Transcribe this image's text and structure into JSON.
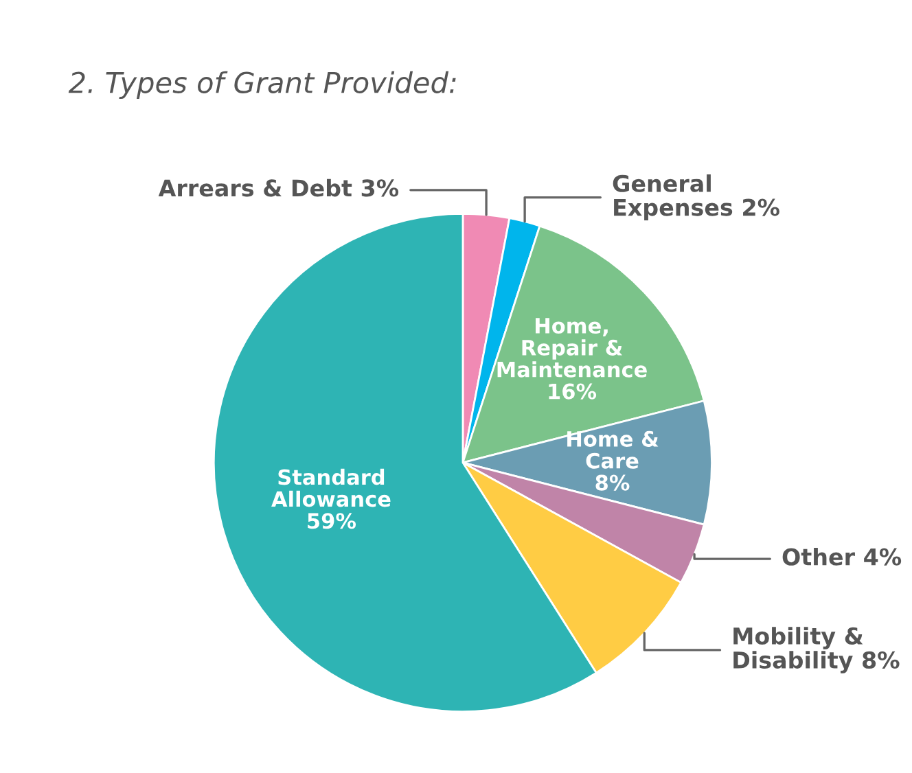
{
  "chart_data": {
    "type": "pie",
    "title": "2. Types of Grant Provided:",
    "categories": [
      "Arrears & Debt",
      "General\nExpenses",
      "Home,\nRepair &\nMaintenance",
      "Home &\nCare",
      "Other",
      "Mobility &\nDisability",
      "Standard\nAllowance"
    ],
    "values": [
      3,
      2,
      16,
      8,
      4,
      8,
      59
    ],
    "value_labels": [
      "3%",
      "2%",
      "16%",
      "8%",
      "4%",
      "8%",
      "59%"
    ],
    "colors": [
      "#f08ab4",
      "#00b5ec",
      "#7bc38a",
      "#6b9db3",
      "#c084a8",
      "#ffcc44",
      "#2eb4b4"
    ],
    "legend": false
  }
}
